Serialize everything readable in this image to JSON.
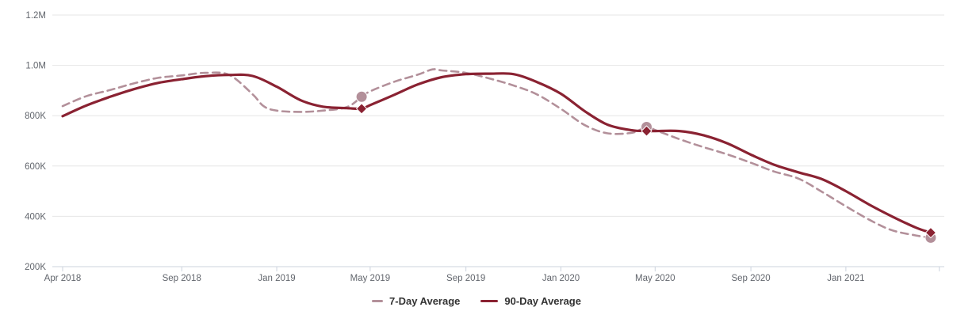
{
  "chart_data": {
    "type": "line",
    "title": "",
    "grid": "horizontal-only",
    "legend_position": "bottom-center",
    "x_axis": {
      "range": [
        "2018-04-01",
        "2021-04-20"
      ],
      "ticks": [
        {
          "date": "2018-04-01",
          "label": "Apr 2018"
        },
        {
          "date": "2018-09-01",
          "label": "Sep 2018"
        },
        {
          "date": "2019-01-01",
          "label": "Jan 2019"
        },
        {
          "date": "2019-05-01",
          "label": "May 2019"
        },
        {
          "date": "2019-09-01",
          "label": "Sep 2019"
        },
        {
          "date": "2020-01-01",
          "label": "Jan 2020"
        },
        {
          "date": "2020-05-01",
          "label": "May 2020"
        },
        {
          "date": "2020-09-01",
          "label": "Sep 2020"
        },
        {
          "date": "2021-01-01",
          "label": "Jan 2021"
        },
        {
          "date": "2021-05-01",
          "label": ""
        }
      ]
    },
    "y_axis": {
      "min": 200000,
      "max": 1200000,
      "ticks": [
        {
          "value": 200000,
          "label": "200K"
        },
        {
          "value": 400000,
          "label": "400K"
        },
        {
          "value": 600000,
          "label": "600K"
        },
        {
          "value": 800000,
          "label": "800K"
        },
        {
          "value": 1000000,
          "label": "1.0M"
        },
        {
          "value": 1200000,
          "label": "1.2M"
        }
      ]
    },
    "series": [
      {
        "name": "7-Day Average",
        "color": "#b3909a",
        "line_style": "dashed",
        "marker_shape": "circle",
        "points": [
          [
            "2018-04-01",
            838000
          ],
          [
            "2018-05-01",
            877000
          ],
          [
            "2018-06-01",
            902000
          ],
          [
            "2018-07-01",
            928000
          ],
          [
            "2018-08-01",
            950000
          ],
          [
            "2018-09-01",
            960000
          ],
          [
            "2018-10-01",
            970000
          ],
          [
            "2018-11-01",
            962000
          ],
          [
            "2018-12-01",
            885000
          ],
          [
            "2018-12-15",
            838000
          ],
          [
            "2019-01-01",
            820000
          ],
          [
            "2019-02-01",
            815000
          ],
          [
            "2019-03-01",
            820000
          ],
          [
            "2019-04-01",
            834000
          ],
          [
            "2019-04-20",
            875000
          ],
          [
            "2019-05-01",
            897000
          ],
          [
            "2019-06-01",
            935000
          ],
          [
            "2019-07-01",
            963000
          ],
          [
            "2019-07-20",
            984000
          ],
          [
            "2019-08-01",
            980000
          ],
          [
            "2019-09-01",
            970000
          ],
          [
            "2019-10-01",
            948000
          ],
          [
            "2019-11-01",
            920000
          ],
          [
            "2019-12-01",
            885000
          ],
          [
            "2020-01-01",
            827000
          ],
          [
            "2020-02-01",
            762000
          ],
          [
            "2020-03-01",
            730000
          ],
          [
            "2020-04-01",
            732000
          ],
          [
            "2020-04-20",
            755000
          ],
          [
            "2020-05-01",
            743000
          ],
          [
            "2020-06-01",
            707000
          ],
          [
            "2020-07-01",
            676000
          ],
          [
            "2020-08-01",
            647000
          ],
          [
            "2020-09-01",
            613000
          ],
          [
            "2020-10-01",
            578000
          ],
          [
            "2020-11-01",
            550000
          ],
          [
            "2020-12-01",
            498000
          ],
          [
            "2021-01-01",
            440000
          ],
          [
            "2021-02-01",
            385000
          ],
          [
            "2021-03-01",
            345000
          ],
          [
            "2021-04-01",
            324000
          ],
          [
            "2021-04-20",
            315000
          ]
        ],
        "highlighted_points": [
          [
            "2019-04-20",
            875000
          ],
          [
            "2020-04-20",
            755000
          ],
          [
            "2021-04-20",
            315000
          ]
        ]
      },
      {
        "name": "90-Day Average",
        "color": "#8a2232",
        "line_style": "solid",
        "marker_shape": "diamond",
        "points": [
          [
            "2018-04-01",
            798000
          ],
          [
            "2018-05-01",
            840000
          ],
          [
            "2018-06-01",
            875000
          ],
          [
            "2018-07-01",
            905000
          ],
          [
            "2018-08-01",
            930000
          ],
          [
            "2018-09-01",
            945000
          ],
          [
            "2018-10-01",
            957000
          ],
          [
            "2018-11-01",
            962000
          ],
          [
            "2018-12-01",
            958000
          ],
          [
            "2019-01-01",
            915000
          ],
          [
            "2019-02-01",
            861000
          ],
          [
            "2019-03-01",
            836000
          ],
          [
            "2019-04-01",
            830000
          ],
          [
            "2019-04-20",
            828000
          ],
          [
            "2019-05-01",
            842000
          ],
          [
            "2019-06-01",
            883000
          ],
          [
            "2019-07-01",
            924000
          ],
          [
            "2019-08-01",
            953000
          ],
          [
            "2019-09-01",
            965000
          ],
          [
            "2019-10-01",
            967000
          ],
          [
            "2019-11-01",
            965000
          ],
          [
            "2019-12-01",
            934000
          ],
          [
            "2020-01-01",
            887000
          ],
          [
            "2020-02-01",
            817000
          ],
          [
            "2020-03-01",
            764000
          ],
          [
            "2020-04-01",
            742000
          ],
          [
            "2020-04-20",
            739000
          ],
          [
            "2020-05-01",
            739000
          ],
          [
            "2020-06-01",
            739000
          ],
          [
            "2020-07-01",
            723000
          ],
          [
            "2020-08-01",
            691000
          ],
          [
            "2020-09-01",
            645000
          ],
          [
            "2020-10-01",
            605000
          ],
          [
            "2020-11-01",
            575000
          ],
          [
            "2020-12-01",
            548000
          ],
          [
            "2021-01-01",
            500000
          ],
          [
            "2021-02-01",
            445000
          ],
          [
            "2021-03-01",
            400000
          ],
          [
            "2021-04-01",
            355000
          ],
          [
            "2021-04-20",
            335000
          ]
        ],
        "highlighted_points": [
          [
            "2019-04-20",
            828000
          ],
          [
            "2020-04-20",
            739000
          ],
          [
            "2021-04-20",
            335000
          ]
        ]
      }
    ]
  },
  "legend": {
    "items": [
      {
        "label": "7-Day Average"
      },
      {
        "label": "90-Day Average"
      }
    ]
  },
  "colors": {
    "background": "#ffffff",
    "grid_line": "#e6e6e6",
    "axis_line": "#ccd3de",
    "axis_label": "#62666d",
    "legend_text": "#333333",
    "series_7day": "#b3909a",
    "series_90day": "#8a2232"
  }
}
